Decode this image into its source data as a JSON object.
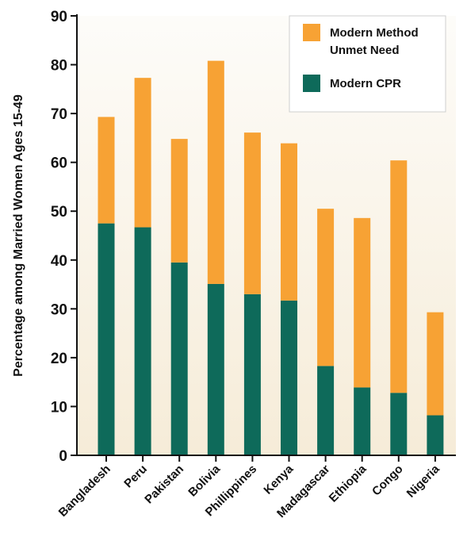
{
  "chart_data": {
    "type": "bar",
    "stacked": true,
    "title": "",
    "xlabel": "",
    "ylabel": "Percentage among Married Women Ages 15-49",
    "ylim": [
      0,
      90
    ],
    "yticks": [
      0,
      10,
      20,
      30,
      40,
      50,
      60,
      70,
      80,
      90
    ],
    "grid": false,
    "legend_position": "top-right",
    "categories": [
      "Bangladesh",
      "Peru",
      "Pakistan",
      "Bolivia",
      "Phillippines",
      "Kenya",
      "Madagascar",
      "Ethiopia",
      "Congo",
      "Nigeria"
    ],
    "series": [
      {
        "name": "Modern CPR",
        "color": "#0e6a5a",
        "values": [
          47.5,
          46.7,
          39.5,
          35.1,
          33.0,
          31.7,
          18.3,
          13.9,
          12.8,
          8.2
        ]
      },
      {
        "name": "Modern Method Unmet Need",
        "color": "#f7a234",
        "values": [
          21.8,
          30.6,
          25.3,
          45.7,
          33.1,
          32.2,
          32.2,
          34.7,
          47.6,
          21.1
        ]
      }
    ],
    "legend": [
      {
        "label_lines": [
          "Modern Method",
          "Unmet Need"
        ],
        "color": "#f7a234"
      },
      {
        "label_lines": [
          "Modern CPR"
        ],
        "color": "#0e6a5a"
      }
    ]
  }
}
